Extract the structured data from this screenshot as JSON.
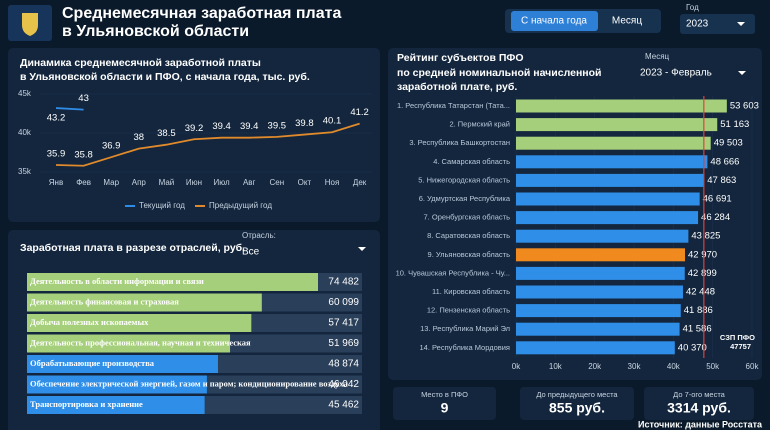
{
  "header": {
    "title_lines": [
      "Среднемесячная заработная плата",
      "в Ульяновской области"
    ],
    "toggle": [
      "С начала года",
      "Месяц"
    ],
    "year_label": "Год",
    "year": "2023"
  },
  "line_chart": {
    "type": "line",
    "title_lines": [
      "Динамика среднемесячной заработной платы",
      "в Ульяновской области и ПФО, с начала года,  тыс. руб."
    ],
    "categories": [
      "Янв",
      "Фев",
      "Мар",
      "Апр",
      "Май",
      "Июн",
      "Июл",
      "Авг",
      "Сен",
      "Окт",
      "Ноя",
      "Дек"
    ],
    "series": [
      {
        "name": "Текущий год",
        "color": "#2e8ce6",
        "values": [
          43.2,
          43,
          null,
          null,
          null,
          null,
          null,
          null,
          null,
          null,
          null,
          null
        ]
      },
      {
        "name": "Предыдущий год",
        "color": "#e08a2c",
        "values": [
          35.9,
          35.8,
          36.9,
          38,
          38.5,
          39.2,
          39.4,
          39.4,
          39.5,
          39.8,
          40.1,
          41.2
        ]
      }
    ],
    "ylim": [
      35,
      45
    ],
    "yticks": [
      {
        "value": 35,
        "label": "35k"
      },
      {
        "value": 40,
        "label": "40k"
      },
      {
        "value": 45,
        "label": "45k"
      }
    ]
  },
  "industry_chart": {
    "type": "bar",
    "title": "Заработная плата в разрезе отраслей, руб.",
    "filter_label": "Отрасль:",
    "filter_value": "Все",
    "categories": [
      "Деятельность в области информации и связи",
      "Деятельность финансовая и страховая",
      "Добыча полезных ископаемых",
      "Деятельность профессиональная, научная и техническая",
      "Обрабатывающие производства",
      "Обеспечение электрической энергией, газом и паром; кондиционирование воздуха",
      "Транспортировка и хранение"
    ],
    "values": [
      74482,
      60099,
      57417,
      51969,
      48874,
      46042,
      45462
    ],
    "value_labels": [
      "74 482",
      "60 099",
      "57 417",
      "51 969",
      "48 874",
      "46 042",
      "45 462"
    ],
    "colors": [
      "#a6cf7c",
      "#a6cf7c",
      "#a6cf7c",
      "#a6cf7c",
      "#2f8fe8",
      "#2f8fe8",
      "#2f8fe8"
    ]
  },
  "ranking_chart": {
    "type": "bar",
    "title_lines": [
      "Рейтинг субъектов ПФО",
      "по средней номинальной начисленной",
      "заработной плате, руб."
    ],
    "filter_label": "Месяц",
    "filter_value": "2023 - Февраль",
    "categories": [
      "1. Республика Татарстан (Тата...",
      "2. Пермский край",
      "3. Республика Башкортостан",
      "4. Самарская область",
      "5. Нижегородская область",
      "6. Удмуртская Республика",
      "7. Оренбургская область",
      "8. Саратовская область",
      "9. Ульяновская область",
      "10. Чувашская Республика - Чу...",
      "11. Кировская область",
      "12. Пензенская область",
      "13. Республика Марий Эл",
      "14. Республика Мордовия"
    ],
    "values": [
      53603,
      51163,
      49503,
      48666,
      47863,
      46691,
      46284,
      43825,
      42970,
      42899,
      42448,
      41886,
      41586,
      40370
    ],
    "value_labels": [
      "53 603",
      "51 163",
      "49 503",
      "48 666",
      "47 863",
      "46 691",
      "46 284",
      "43 825",
      "42 970",
      "42 899",
      "42 448",
      "41 886",
      "41 586",
      "40 370"
    ],
    "colors": [
      "#a6cf7c",
      "#a6cf7c",
      "#a6cf7c",
      "#2f8fe8",
      "#2f8fe8",
      "#2f8fe8",
      "#2f8fe8",
      "#2f8fe8",
      "#f08a1e",
      "#2f8fe8",
      "#2f8fe8",
      "#2f8fe8",
      "#2f8fe8",
      "#2f8fe8"
    ],
    "xlim": [
      0,
      60000
    ],
    "xticks": [
      {
        "value": 0,
        "label": "0k"
      },
      {
        "value": 10000,
        "label": "10k"
      },
      {
        "value": 20000,
        "label": "20k"
      },
      {
        "value": 30000,
        "label": "30k"
      },
      {
        "value": 40000,
        "label": "40k"
      },
      {
        "value": 50000,
        "label": "50k"
      },
      {
        "value": 60000,
        "label": "60k"
      }
    ],
    "reference": {
      "label": "СЗП ПФО",
      "value": 47757,
      "color": "#e0403a"
    }
  },
  "kpis": [
    {
      "label": "Место в ПФО",
      "value": "9"
    },
    {
      "label": "До предыдущего места",
      "value": "855 руб."
    },
    {
      "label": "До 7-ого места",
      "value": "3314 руб."
    }
  ],
  "source": "Источник: данные Росстата"
}
